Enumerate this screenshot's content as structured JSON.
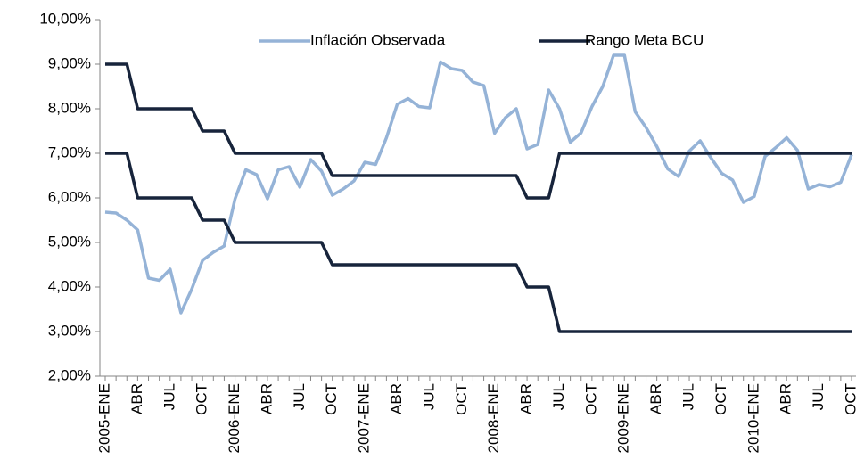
{
  "chart_data": {
    "type": "line",
    "categories": [
      "2005-ENE",
      null,
      null,
      "ABR",
      null,
      null,
      "JUL",
      null,
      null,
      "OCT",
      null,
      null,
      "2006-ENE",
      null,
      null,
      "ABR",
      null,
      null,
      "JUL",
      null,
      null,
      "OCT",
      null,
      null,
      "2007-ENE",
      null,
      null,
      "ABR",
      null,
      null,
      "JUL",
      null,
      null,
      "OCT",
      null,
      null,
      "2008-ENE",
      null,
      null,
      "ABR",
      null,
      null,
      "JUL",
      null,
      null,
      "OCT",
      null,
      null,
      "2009-ENE",
      null,
      null,
      "ABR",
      null,
      null,
      "JUL",
      null,
      null,
      "OCT",
      null,
      null,
      "2010-ENE",
      null,
      null,
      "ABR",
      null,
      null,
      "JUL",
      null,
      null,
      "OCT"
    ],
    "series": [
      {
        "name": "Inflación Observada",
        "color": "#95b3d7",
        "values": [
          5.68,
          5.66,
          5.5,
          5.28,
          4.2,
          4.15,
          4.4,
          3.42,
          3.95,
          4.6,
          4.78,
          4.92,
          5.98,
          6.63,
          6.52,
          5.98,
          6.63,
          6.7,
          6.24,
          6.86,
          6.6,
          6.06,
          6.2,
          6.38,
          6.8,
          6.75,
          7.35,
          8.1,
          8.23,
          8.05,
          8.02,
          9.05,
          8.9,
          8.86,
          8.6,
          8.52,
          7.45,
          7.8,
          8.0,
          7.1,
          7.2,
          8.42,
          8.0,
          7.25,
          7.46,
          8.05,
          8.5,
          9.2,
          9.2,
          7.93,
          7.58,
          7.15,
          6.65,
          6.48,
          7.05,
          7.28,
          6.9,
          6.55,
          6.4,
          5.9,
          6.03,
          6.93,
          7.13,
          7.35,
          7.07,
          6.2,
          6.3,
          6.25,
          6.35,
          6.97
        ]
      },
      {
        "name": "Rango Meta BCU",
        "color": "#17243b",
        "values": [
          9,
          9,
          9,
          8,
          8,
          8,
          8,
          8,
          8,
          7.5,
          7.5,
          7.5,
          7,
          7,
          7,
          7,
          7,
          7,
          7,
          7,
          7,
          6.5,
          6.5,
          6.5,
          6.5,
          6.5,
          6.5,
          6.5,
          6.5,
          6.5,
          6.5,
          6.5,
          6.5,
          6.5,
          6.5,
          6.5,
          6.5,
          6.5,
          6.5,
          6,
          6,
          6,
          7,
          7,
          7,
          7,
          7,
          7,
          7,
          7,
          7,
          7,
          7,
          7,
          7,
          7,
          7,
          7,
          7,
          7,
          7,
          7,
          7,
          7,
          7,
          7,
          7,
          7,
          7,
          7
        ],
        "lower_values": [
          7,
          7,
          7,
          6,
          6,
          6,
          6,
          6,
          6,
          5.5,
          5.5,
          5.5,
          5,
          5,
          5,
          5,
          5,
          5,
          5,
          5,
          5,
          4.5,
          4.5,
          4.5,
          4.5,
          4.5,
          4.5,
          4.5,
          4.5,
          4.5,
          4.5,
          4.5,
          4.5,
          4.5,
          4.5,
          4.5,
          4.5,
          4.5,
          4.5,
          4,
          4,
          4,
          3,
          3,
          3,
          3,
          3,
          3,
          3,
          3,
          3,
          3,
          3,
          3,
          3,
          3,
          3,
          3,
          3,
          3,
          3,
          3,
          3,
          3,
          3,
          3,
          3,
          3,
          3,
          3
        ]
      }
    ],
    "ylim": [
      2,
      10
    ],
    "yticks": [
      {
        "value": 2,
        "label": "2,00%"
      },
      {
        "value": 3,
        "label": "3,00%"
      },
      {
        "value": 4,
        "label": "4,00%"
      },
      {
        "value": 5,
        "label": "5,00%"
      },
      {
        "value": 6,
        "label": "6,00%"
      },
      {
        "value": 7,
        "label": "7,00%"
      },
      {
        "value": 8,
        "label": "8,00%"
      },
      {
        "value": 9,
        "label": "9,00%"
      },
      {
        "value": 10,
        "label": "10,00%"
      }
    ],
    "grid": false,
    "legend": "top"
  }
}
